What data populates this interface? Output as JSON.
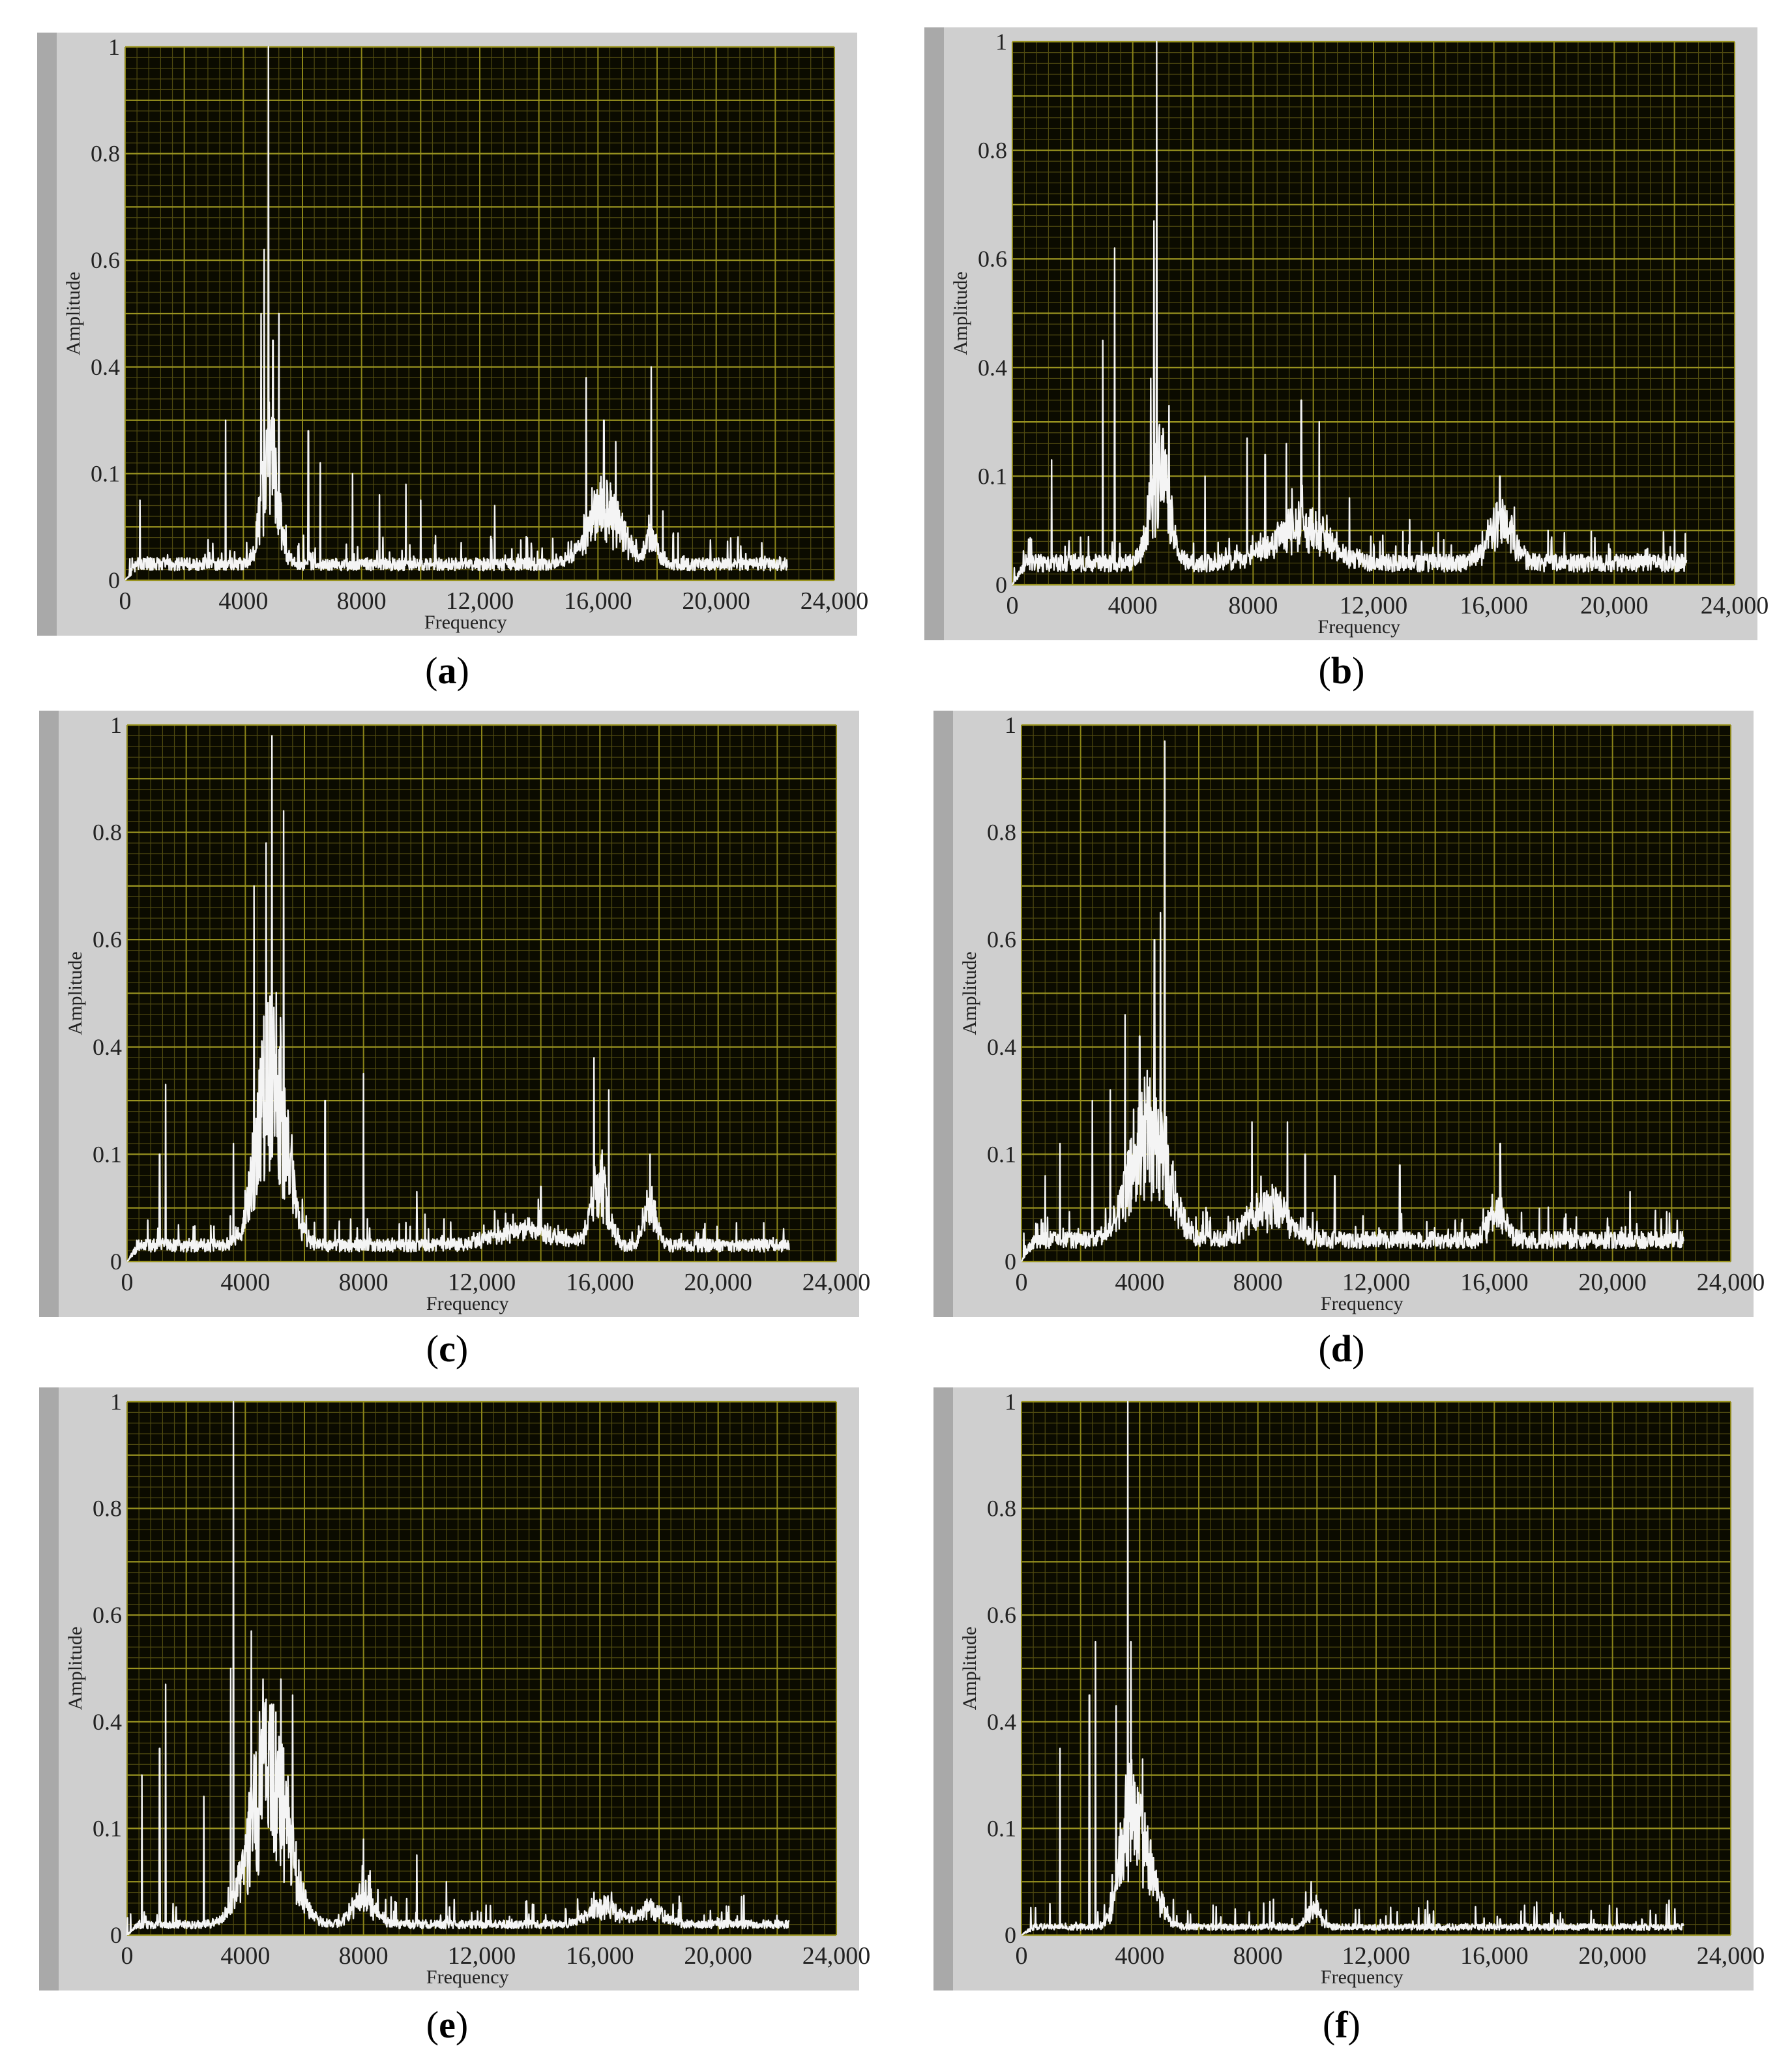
{
  "chart_data": [
    {
      "id": "a",
      "caption": "a",
      "type": "line",
      "xlabel": "Frequency",
      "ylabel": "Amplitude",
      "xlim": [
        0,
        24000
      ],
      "ylim": [
        0,
        1
      ],
      "x_ticks": [
        "0",
        "4000",
        "8000",
        "12,000",
        "16,000",
        "20,000",
        "24,000"
      ],
      "y_ticks": [
        "0",
        "0.1",
        "0.4",
        "0.6",
        "0.8",
        "1"
      ],
      "noise_floor": 0.03,
      "peaks": [
        [
          500,
          0.15
        ],
        [
          3400,
          0.3
        ],
        [
          4600,
          0.5
        ],
        [
          4700,
          0.62
        ],
        [
          4850,
          1.0
        ],
        [
          5000,
          0.45
        ],
        [
          5200,
          0.5
        ],
        [
          6200,
          0.28
        ],
        [
          6600,
          0.22
        ],
        [
          7700,
          0.2
        ],
        [
          8600,
          0.16
        ],
        [
          9500,
          0.18
        ],
        [
          10000,
          0.15
        ],
        [
          12500,
          0.14
        ],
        [
          15600,
          0.38
        ],
        [
          16200,
          0.3
        ],
        [
          16600,
          0.26
        ],
        [
          17800,
          0.4
        ],
        [
          18200,
          0.13
        ],
        [
          21000,
          0.05
        ]
      ],
      "humps": [
        [
          4900,
          400,
          0.22
        ],
        [
          16200,
          800,
          0.12
        ],
        [
          17800,
          250,
          0.06
        ]
      ]
    },
    {
      "id": "b",
      "caption": "b",
      "type": "line",
      "xlabel": "Frequency",
      "ylabel": "Amplitude",
      "xlim": [
        0,
        24000
      ],
      "ylim": [
        0,
        1
      ],
      "x_ticks": [
        "0",
        "4000",
        "8000",
        "12,000",
        "16,000",
        "20,000",
        "24,000"
      ],
      "y_ticks": [
        "0",
        "0.1",
        "0.4",
        "0.6",
        "0.8",
        "1"
      ],
      "noise_floor": 0.04,
      "peaks": [
        [
          1300,
          0.23
        ],
        [
          3000,
          0.45
        ],
        [
          3400,
          0.62
        ],
        [
          4600,
          0.38
        ],
        [
          4800,
          1.0
        ],
        [
          4700,
          0.67
        ],
        [
          5200,
          0.33
        ],
        [
          6400,
          0.2
        ],
        [
          7800,
          0.27
        ],
        [
          8400,
          0.24
        ],
        [
          9100,
          0.26
        ],
        [
          9600,
          0.34
        ],
        [
          10200,
          0.3
        ],
        [
          11200,
          0.16
        ],
        [
          13200,
          0.12
        ],
        [
          16200,
          0.2
        ],
        [
          17800,
          0.1
        ],
        [
          22000,
          0.1
        ]
      ],
      "humps": [
        [
          4900,
          450,
          0.18
        ],
        [
          9500,
          1300,
          0.07
        ],
        [
          16200,
          600,
          0.08
        ]
      ]
    },
    {
      "id": "c",
      "caption": "c",
      "type": "line",
      "xlabel": "Frequency",
      "ylabel": "Amplitude",
      "xlim": [
        0,
        24000
      ],
      "ylim": [
        0,
        1
      ],
      "x_ticks": [
        "0",
        "4000",
        "8000",
        "12,000",
        "16,000",
        "20,000",
        "24,000"
      ],
      "y_ticks": [
        "0",
        "0.1",
        "0.4",
        "0.6",
        "0.8",
        "1"
      ],
      "noise_floor": 0.03,
      "peaks": [
        [
          1100,
          0.2
        ],
        [
          1300,
          0.33
        ],
        [
          3600,
          0.22
        ],
        [
          4300,
          0.7
        ],
        [
          4700,
          0.78
        ],
        [
          4900,
          0.98
        ],
        [
          5300,
          0.84
        ],
        [
          6700,
          0.3
        ],
        [
          8000,
          0.35
        ],
        [
          9800,
          0.13
        ],
        [
          14000,
          0.14
        ],
        [
          15800,
          0.38
        ],
        [
          16300,
          0.32
        ],
        [
          17700,
          0.2
        ],
        [
          19500,
          0.06
        ]
      ],
      "humps": [
        [
          4900,
          700,
          0.35
        ],
        [
          16000,
          400,
          0.12
        ],
        [
          17700,
          300,
          0.08
        ],
        [
          13500,
          1500,
          0.03
        ]
      ]
    },
    {
      "id": "d",
      "caption": "d",
      "type": "line",
      "xlabel": "Frequency",
      "ylabel": "Amplitude",
      "xlim": [
        0,
        24000
      ],
      "ylim": [
        0,
        1
      ],
      "x_ticks": [
        "0",
        "4000",
        "8000",
        "12,000",
        "16,000",
        "20,000",
        "24,000"
      ],
      "y_ticks": [
        "0",
        "0.1",
        "0.4",
        "0.6",
        "0.8",
        "1"
      ],
      "noise_floor": 0.04,
      "peaks": [
        [
          800,
          0.16
        ],
        [
          1300,
          0.22
        ],
        [
          2400,
          0.3
        ],
        [
          3000,
          0.32
        ],
        [
          3500,
          0.46
        ],
        [
          4000,
          0.42
        ],
        [
          4500,
          0.6
        ],
        [
          4700,
          0.65
        ],
        [
          4850,
          0.97
        ],
        [
          7800,
          0.26
        ],
        [
          9000,
          0.26
        ],
        [
          9600,
          0.2
        ],
        [
          10600,
          0.16
        ],
        [
          12800,
          0.18
        ],
        [
          16200,
          0.22
        ],
        [
          20600,
          0.13
        ]
      ],
      "humps": [
        [
          4300,
          900,
          0.22
        ],
        [
          8400,
          900,
          0.07
        ],
        [
          16100,
          400,
          0.06
        ]
      ]
    },
    {
      "id": "e",
      "caption": "e",
      "type": "line",
      "xlabel": "Frequency",
      "ylabel": "Amplitude",
      "xlim": [
        0,
        24000
      ],
      "ylim": [
        0,
        1
      ],
      "x_ticks": [
        "0",
        "4000",
        "8000",
        "12,000",
        "16,000",
        "20,000",
        "24,000"
      ],
      "y_ticks": [
        "0",
        "0.1",
        "0.4",
        "0.6",
        "0.8",
        "1"
      ],
      "noise_floor": 0.02,
      "peaks": [
        [
          500,
          0.3
        ],
        [
          1100,
          0.35
        ],
        [
          1300,
          0.47
        ],
        [
          2600,
          0.26
        ],
        [
          3500,
          0.5
        ],
        [
          3600,
          1.0
        ],
        [
          4200,
          0.57
        ],
        [
          4600,
          0.48
        ],
        [
          5200,
          0.48
        ],
        [
          5600,
          0.45
        ],
        [
          8000,
          0.18
        ],
        [
          9800,
          0.15
        ],
        [
          10800,
          0.1
        ],
        [
          15800,
          0.08
        ]
      ],
      "humps": [
        [
          4800,
          900,
          0.3
        ],
        [
          8000,
          500,
          0.06
        ],
        [
          16100,
          700,
          0.04
        ],
        [
          17700,
          600,
          0.03
        ]
      ]
    },
    {
      "id": "f",
      "caption": "f",
      "type": "line",
      "xlabel": "Frequency",
      "ylabel": "Amplitude",
      "xlim": [
        0,
        24000
      ],
      "ylim": [
        0,
        1
      ],
      "x_ticks": [
        "0",
        "4000",
        "8000",
        "12,000",
        "16,000",
        "20,000",
        "24,000"
      ],
      "y_ticks": [
        "0",
        "0.1",
        "0.4",
        "0.6",
        "0.8",
        "1"
      ],
      "noise_floor": 0.015,
      "peaks": [
        [
          1300,
          0.35
        ],
        [
          2300,
          0.45
        ],
        [
          2500,
          0.55
        ],
        [
          3200,
          0.43
        ],
        [
          3600,
          1.0
        ],
        [
          3700,
          0.55
        ],
        [
          4100,
          0.33
        ],
        [
          8200,
          0.06
        ],
        [
          9800,
          0.1
        ],
        [
          16200,
          0.03
        ]
      ],
      "humps": [
        [
          3700,
          500,
          0.22
        ],
        [
          4400,
          500,
          0.08
        ],
        [
          9900,
          300,
          0.04
        ]
      ]
    }
  ]
}
